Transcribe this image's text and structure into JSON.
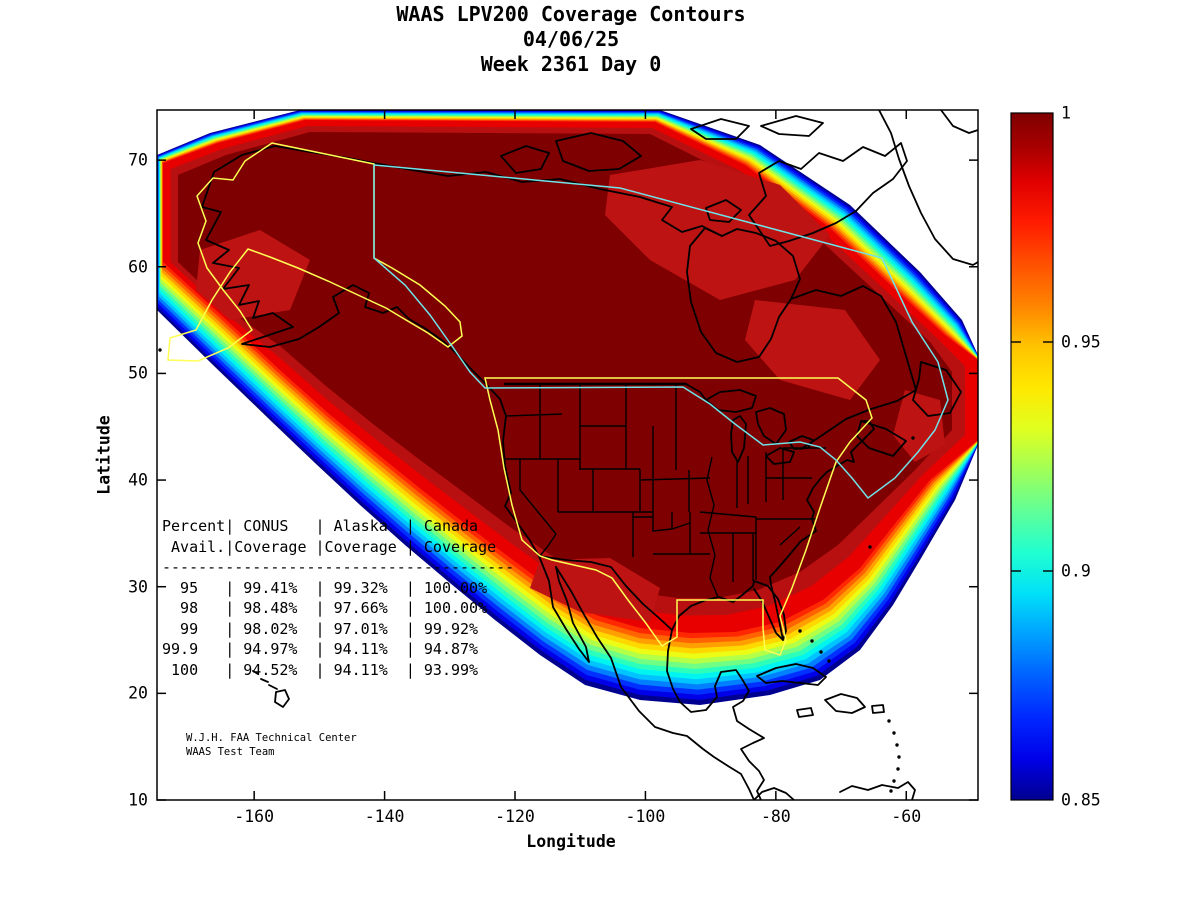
{
  "title": {
    "lines": [
      "WAAS LPV200 Coverage Contours",
      "04/06/25",
      "Week 2361 Day 0"
    ]
  },
  "axes": {
    "x_label": "Longitude",
    "y_label": "Latitude",
    "x_tick_labels": [
      "-160",
      "-140",
      "-120",
      "-100",
      "-80",
      "-60"
    ],
    "y_tick_labels": [
      "10",
      "20",
      "30",
      "40",
      "50",
      "60",
      "70"
    ]
  },
  "coverage_table": {
    "header_line1": "Percent| CONUS   | Alaska  | Canada",
    "header_line2": " Avail.|Coverage |Coverage | Coverage",
    "separator": "---------------------------------------",
    "columns": [
      "Percent Avail.",
      "CONUS Coverage",
      "Alaska Coverage",
      "Canada Coverage"
    ],
    "rows": [
      [
        "95",
        "99.41%",
        "99.32%",
        "100.00%"
      ],
      [
        "98",
        "98.48%",
        "97.66%",
        "100.00%"
      ],
      [
        "99",
        "98.02%",
        "97.01%",
        "99.92%"
      ],
      [
        "99.9",
        "94.97%",
        "94.11%",
        "94.87%"
      ],
      [
        "100",
        "94.52%",
        "94.11%",
        "93.99%"
      ]
    ]
  },
  "attribution": {
    "line1": "W.J.H. FAA Technical Center",
    "line2": "WAAS Test Team"
  },
  "chart_data": {
    "type": "contour",
    "title": "WAAS LPV200 Coverage Contours",
    "date": "04/06/25",
    "week_day": "Week 2361 Day 0",
    "xlabel": "Longitude",
    "ylabel": "Latitude",
    "xlim": [
      -174.9,
      -49.0
    ],
    "ylim": [
      10,
      74.7
    ],
    "x_tick_values": [
      -160,
      -140,
      -120,
      -100,
      -80,
      -60
    ],
    "y_tick_values": [
      10,
      20,
      30,
      40,
      50,
      60,
      70
    ],
    "grid": false,
    "contour_levels": [
      0.85,
      0.86,
      0.87,
      0.88,
      0.89,
      0.9,
      0.91,
      0.92,
      0.93,
      0.94,
      0.95,
      0.96,
      0.97,
      0.98,
      0.99,
      1.0
    ],
    "colorbar": {
      "range": [
        0.85,
        1
      ],
      "tick_values": [
        1,
        0.95,
        0.9,
        0.85
      ],
      "tick_labels": [
        "1",
        "0.95",
        "0.9",
        "0.85"
      ],
      "colormap": "jet",
      "position": "right"
    },
    "service_volumes": [
      {
        "name": "CONUS",
        "outline_color": "#ffff55"
      },
      {
        "name": "Alaska",
        "outline_color": "#ffff55"
      },
      {
        "name": "Canada",
        "outline_color": "#6fe3e8"
      }
    ],
    "palette": {
      "band_colors": [
        "#000090",
        "#0000e8",
        "#0030ff",
        "#0080ff",
        "#00c4ff",
        "#00f4f0",
        "#2cffbc",
        "#70ff84",
        "#b4ff48",
        "#ecfc14",
        "#ffd800",
        "#ffa000",
        "#ff6400",
        "#ff2800"
      ],
      "red_ring": "#e80000",
      "mid_red": "#b81010",
      "core": "#7e0000",
      "patch": "#be1313",
      "coast": "#000000",
      "colorbar_stops": [
        [
          0,
          "#00008f"
        ],
        [
          6,
          "#0000e8"
        ],
        [
          12,
          "#0028ff"
        ],
        [
          18,
          "#0060ff"
        ],
        [
          24,
          "#00a0ff"
        ],
        [
          30,
          "#00e0f8"
        ],
        [
          36,
          "#20ffd0"
        ],
        [
          42,
          "#60ff98"
        ],
        [
          48,
          "#a0ff58"
        ],
        [
          54,
          "#e0ff20"
        ],
        [
          60,
          "#ffe800"
        ],
        [
          66,
          "#ffc400"
        ],
        [
          72,
          "#ff8400"
        ],
        [
          78,
          "#ff5000"
        ],
        [
          84,
          "#ff1c00"
        ],
        [
          90,
          "#e00000"
        ],
        [
          95,
          "#a80000"
        ],
        [
          100,
          "#7f0000"
        ]
      ]
    },
    "table": {
      "columns": [
        "Percent Avail.",
        "CONUS Coverage",
        "Alaska Coverage",
        "Canada Coverage"
      ],
      "rows": [
        [
          "95",
          "99.41%",
          "99.32%",
          "100.00%"
        ],
        [
          "98",
          "98.48%",
          "97.66%",
          "100.00%"
        ],
        [
          "99",
          "98.02%",
          "97.01%",
          "99.92%"
        ],
        [
          "99.9",
          "94.97%",
          "94.11%",
          "94.87%"
        ],
        [
          "100",
          "94.52%",
          "94.11%",
          "93.99%"
        ]
      ]
    }
  }
}
